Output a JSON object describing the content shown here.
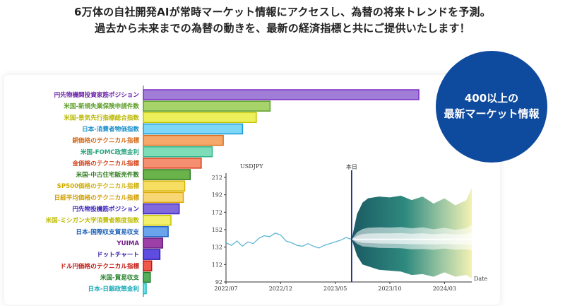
{
  "header": {
    "line1": "6万体の自社開発AIが常時マーケット情報にアクセスし、為替の将来トレンドを予測。",
    "line2": "過去から未来までの為替の動きを、最新の経済指標と共にご提供いたします！"
  },
  "badge": {
    "line1": "400以上の",
    "line2": "最新マーケット情報"
  },
  "chart_data": [
    {
      "type": "bar",
      "orientation": "horizontal",
      "categories": [
        "円先物機関投資家筋ポジション",
        "米国-新規失業保険申請件数",
        "米国-景気先行指標総合指数",
        "日本-消費者物価指数",
        "銅価格のテクニカル指標",
        "米国-FOMC政策金利",
        "金価格のテクニカル指標",
        "米国-中古住宅販売件数",
        "SP500価格のテクニカル指標",
        "日経平均価格のテクニカル指標",
        "円先物投機筋ポジション",
        "米国-ミシガン大学消費者態度指数",
        "日本-国際収支貿易収支",
        "YUIMA",
        "ドットチャート",
        "ドル円価格のテクニカル指標",
        "米国-貿易収支",
        "日本-日銀政策金利"
      ],
      "values": [
        100,
        46,
        41,
        36,
        29,
        25,
        21,
        17,
        15,
        14.5,
        13,
        10,
        9,
        7,
        6,
        3,
        2.5,
        1
      ],
      "colors": [
        "#a07ed8",
        "#a6d46a",
        "#ecf05a",
        "#7fd7f7",
        "#f4a86a",
        "#7fdcb8",
        "#f58f72",
        "#6ab24a",
        "#f6de63",
        "#f8d673",
        "#7f69dc",
        "#f2f06c",
        "#6aa4ec",
        "#9c3fa6",
        "#5f4ce0",
        "#f0584c",
        "#55ae5c",
        "#76e3e8"
      ],
      "borders": [
        "#7a2cc2",
        "#5c9c2a",
        "#c2c600",
        "#1a9ad8",
        "#d96e1c",
        "#2cb58a",
        "#d8431f",
        "#2a7a1e",
        "#d8b400",
        "#d9a800",
        "#3d24c2",
        "#c5c400",
        "#1f62c4",
        "#6a1f7c",
        "#2a17b0",
        "#c01a12",
        "#1e7a2a",
        "#1ab8c4"
      ],
      "label_colors": [
        "#6a1fa8",
        "#5e9e28",
        "#b9b800",
        "#1a8fc9",
        "#d46a18",
        "#26a27c",
        "#d2441c",
        "#2e7c1e",
        "#cfae00",
        "#d19f00",
        "#3a22b9",
        "#bdbc00",
        "#1c5fb8",
        "#741f88",
        "#2b18a8",
        "#c2170f",
        "#23802c",
        "#16a9b8"
      ]
    },
    {
      "type": "line",
      "title": "USDJPY",
      "xlabel": "Date",
      "x_ticks": [
        "2022/07",
        "2022/12",
        "2023/05",
        "2023/10",
        "2024/03"
      ],
      "y_ticks": [
        92,
        112,
        132,
        152,
        172,
        192,
        212
      ],
      "ylim": [
        92,
        212
      ],
      "marker_label": "本日",
      "marker_month": 11.5,
      "x_range_months": [
        0,
        22.5
      ],
      "history": {
        "months": [
          0,
          0.5,
          1,
          1.5,
          2,
          2.5,
          3,
          3.5,
          4,
          4.5,
          5,
          5.5,
          6,
          6.5,
          7,
          7.5,
          8,
          8.5,
          9,
          9.5,
          10,
          10.5,
          11,
          11.5
        ],
        "values": [
          137,
          134,
          139,
          133,
          138,
          136,
          142,
          145,
          144,
          148,
          146,
          139,
          137,
          134,
          133,
          136,
          133,
          131,
          134,
          136,
          138,
          140,
          143,
          141
        ]
      },
      "forecast": {
        "months": [
          11.5,
          12,
          12.5,
          13,
          14,
          15,
          16,
          17,
          18,
          19,
          20,
          21,
          22,
          22.5
        ],
        "center": [
          141,
          141,
          141,
          141,
          141,
          141,
          141,
          141,
          141,
          141,
          141,
          141,
          141,
          141
        ],
        "upper": [
          141,
          170,
          183,
          188,
          190,
          189,
          191,
          186,
          190,
          182,
          188,
          180,
          186,
          200
        ],
        "lower": [
          141,
          122,
          112,
          110,
          106,
          105,
          104,
          100,
          101,
          98,
          103,
          98,
          100,
          96
        ]
      }
    }
  ]
}
